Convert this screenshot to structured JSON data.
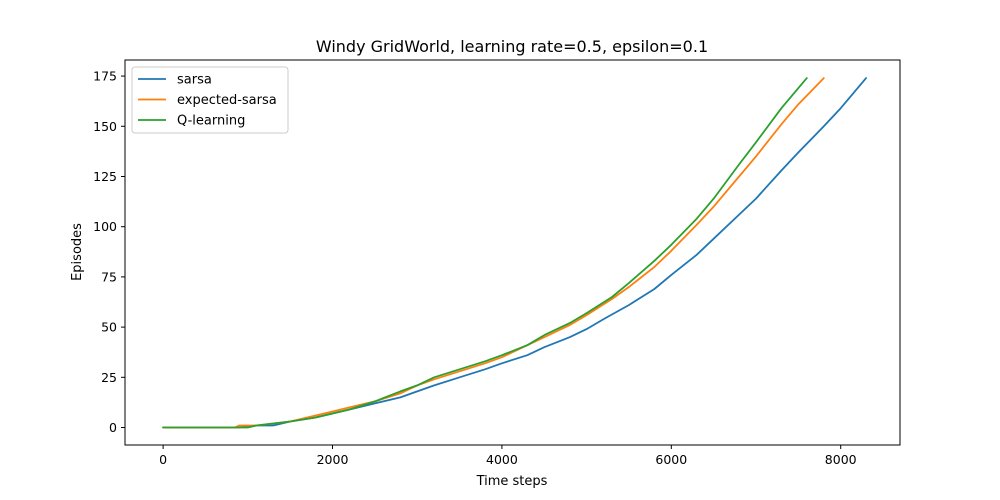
{
  "chart_data": {
    "type": "line",
    "title": "Windy GridWorld, learning rate=0.5, epsilon=0.1",
    "xlabel": "Time steps",
    "ylabel": "Episodes",
    "xlim": [
      -450,
      8700
    ],
    "ylim": [
      -8.7,
      183
    ],
    "xticks": [
      0,
      2000,
      4000,
      6000,
      8000
    ],
    "yticks": [
      0,
      25,
      50,
      75,
      100,
      125,
      150,
      175
    ],
    "legend_position": "upper-left",
    "grid": false,
    "series": [
      {
        "name": "sarsa",
        "color": "#1f77b4",
        "points": [
          [
            0,
            0
          ],
          [
            900,
            0
          ],
          [
            1100,
            1
          ],
          [
            1300,
            1
          ],
          [
            1500,
            3
          ],
          [
            1800,
            5
          ],
          [
            2000,
            7
          ],
          [
            2200,
            9
          ],
          [
            2500,
            12
          ],
          [
            2800,
            15
          ],
          [
            3000,
            18
          ],
          [
            3200,
            21
          ],
          [
            3500,
            25
          ],
          [
            3800,
            29
          ],
          [
            4000,
            32
          ],
          [
            4300,
            36
          ],
          [
            4500,
            40
          ],
          [
            4800,
            45
          ],
          [
            5000,
            49
          ],
          [
            5200,
            54
          ],
          [
            5500,
            61
          ],
          [
            5800,
            69
          ],
          [
            6000,
            76
          ],
          [
            6300,
            86
          ],
          [
            6500,
            94
          ],
          [
            6800,
            106
          ],
          [
            7000,
            114
          ],
          [
            7300,
            128
          ],
          [
            7500,
            137
          ],
          [
            7800,
            150
          ],
          [
            8000,
            159
          ],
          [
            8300,
            174
          ]
        ]
      },
      {
        "name": "expected-sarsa",
        "color": "#ff7f0e",
        "points": [
          [
            0,
            0
          ],
          [
            850,
            0
          ],
          [
            900,
            1
          ],
          [
            1100,
            1
          ],
          [
            1300,
            2
          ],
          [
            1500,
            3
          ],
          [
            1800,
            6
          ],
          [
            2000,
            8
          ],
          [
            2200,
            10
          ],
          [
            2500,
            13
          ],
          [
            2800,
            17
          ],
          [
            3000,
            21
          ],
          [
            3200,
            24
          ],
          [
            3500,
            28
          ],
          [
            3800,
            32
          ],
          [
            4000,
            35
          ],
          [
            4300,
            41
          ],
          [
            4500,
            45
          ],
          [
            4800,
            51
          ],
          [
            5000,
            56
          ],
          [
            5300,
            64
          ],
          [
            5500,
            70
          ],
          [
            5800,
            80
          ],
          [
            6000,
            88
          ],
          [
            6300,
            101
          ],
          [
            6500,
            110
          ],
          [
            6800,
            125
          ],
          [
            7000,
            135
          ],
          [
            7300,
            151
          ],
          [
            7500,
            161
          ],
          [
            7800,
            174
          ]
        ]
      },
      {
        "name": "Q-learning",
        "color": "#2ca02c",
        "points": [
          [
            0,
            0
          ],
          [
            1000,
            0
          ],
          [
            1100,
            1
          ],
          [
            1300,
            2
          ],
          [
            1500,
            3
          ],
          [
            1800,
            5
          ],
          [
            2000,
            7
          ],
          [
            2200,
            9
          ],
          [
            2500,
            13
          ],
          [
            2800,
            18
          ],
          [
            3000,
            21
          ],
          [
            3200,
            25
          ],
          [
            3500,
            29
          ],
          [
            3800,
            33
          ],
          [
            4000,
            36
          ],
          [
            4300,
            41
          ],
          [
            4500,
            46
          ],
          [
            4800,
            52
          ],
          [
            5000,
            57
          ],
          [
            5300,
            65
          ],
          [
            5500,
            72
          ],
          [
            5800,
            83
          ],
          [
            6000,
            91
          ],
          [
            6300,
            104
          ],
          [
            6500,
            114
          ],
          [
            6800,
            131
          ],
          [
            7000,
            142
          ],
          [
            7300,
            159
          ],
          [
            7600,
            174
          ]
        ]
      }
    ]
  }
}
